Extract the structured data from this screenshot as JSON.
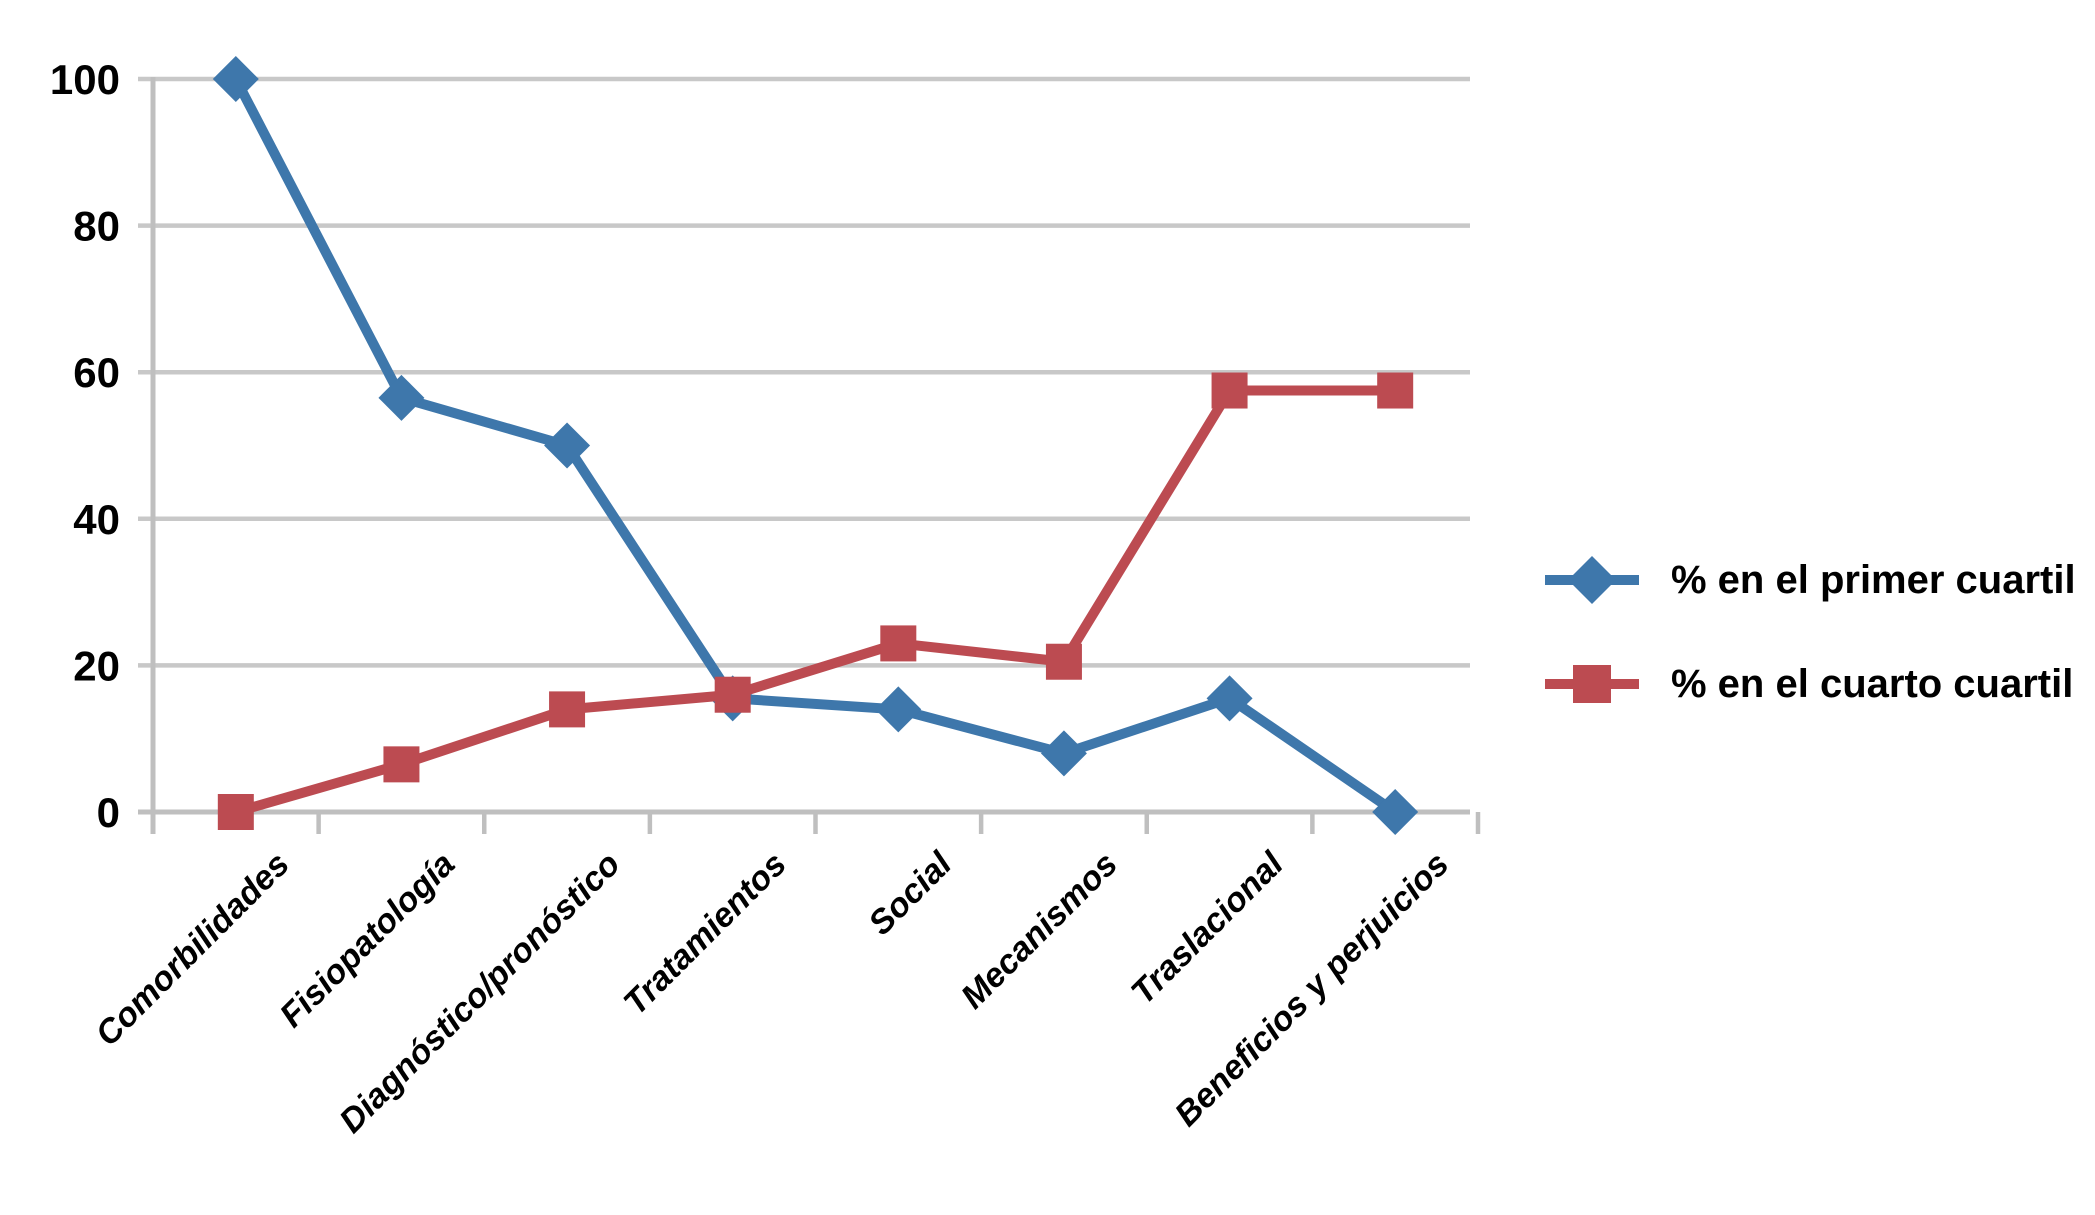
{
  "chart_data": {
    "type": "line",
    "title": "",
    "xlabel": "",
    "ylabel": "",
    "categories": [
      "Comorbilidades",
      "Fisiopatología",
      "Diagnóstico/pronóstico",
      "Tratamientos",
      "Social",
      "Mecanismos",
      "Traslacional",
      "Beneficios y perjuicios"
    ],
    "series": [
      {
        "name": "% en el primer cuartil",
        "color": "#3E77AB",
        "marker": "diamond",
        "values": [
          100,
          56.5,
          50,
          15.5,
          14,
          8,
          15.5,
          0
        ]
      },
      {
        "name": "% en el cuarto cuartil",
        "color": "#BC4B51",
        "marker": "square",
        "values": [
          0,
          6.5,
          14,
          16,
          23,
          20.5,
          57.5,
          57.5
        ]
      }
    ],
    "yticks": [
      0,
      20,
      40,
      60,
      80,
      100
    ],
    "ylim": [
      0,
      100
    ],
    "grid": true,
    "gridline_color": "#C8C8C8",
    "axis_color": "#BFBFBF",
    "legend_position": "right"
  }
}
